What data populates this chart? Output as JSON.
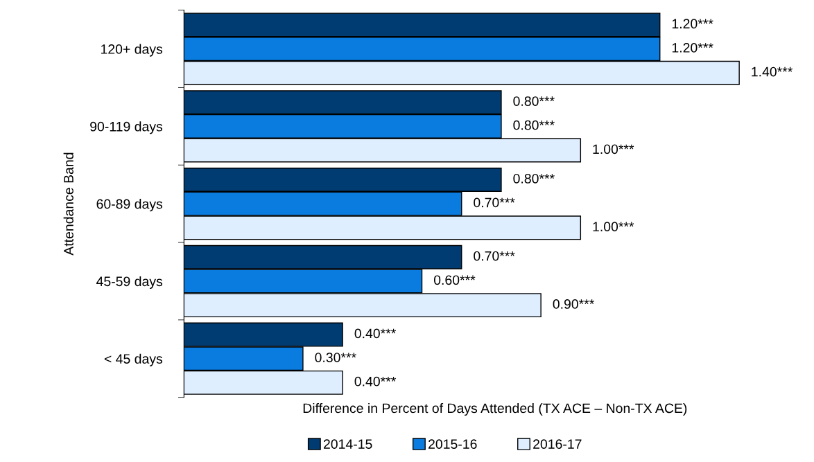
{
  "chart_data": {
    "type": "bar",
    "orientation": "horizontal",
    "ylabel": "Attendance Band",
    "xlabel": "Difference in Percent of Days Attended (TX ACE – Non-TX ACE)",
    "categories": [
      "120+ days",
      "90-119 days",
      "60-89 days",
      "45-59 days",
      "< 45 days"
    ],
    "series": [
      {
        "name": "2014-15",
        "color": "#003c71",
        "values": [
          1.2,
          0.8,
          0.8,
          0.7,
          0.4
        ],
        "value_labels": [
          "1.20***",
          "0.80***",
          "0.80***",
          "0.70***",
          "0.40***"
        ]
      },
      {
        "name": "2015-16",
        "color": "#0a7ce0",
        "values": [
          1.2,
          0.8,
          0.7,
          0.6,
          0.3
        ],
        "value_labels": [
          "1.20***",
          "0.80***",
          "0.70***",
          "0.60***",
          "0.30***"
        ]
      },
      {
        "name": "2016-17",
        "color": "#deeeff",
        "values": [
          1.4,
          1.0,
          1.0,
          0.9,
          0.4
        ],
        "value_labels": [
          "1.40***",
          "1.00***",
          "1.00***",
          "0.90***",
          "0.40***"
        ]
      }
    ],
    "legend": "bottom",
    "grid": false
  }
}
